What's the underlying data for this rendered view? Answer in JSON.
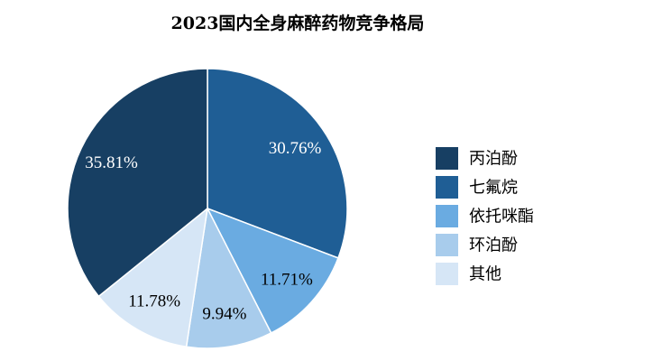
{
  "chart_data": {
    "type": "pie",
    "title": "2023国内全身麻醉药物竞争格局",
    "slices": [
      {
        "label": "丙泊酚",
        "value": 35.81,
        "display": "35.81%",
        "color": "#173f63",
        "text_color": "#ffffff"
      },
      {
        "label": "七氟烷",
        "value": 30.76,
        "display": "30.76%",
        "color": "#1f5e95",
        "text_color": "#ffffff"
      },
      {
        "label": "依托咪酯",
        "value": 11.71,
        "display": "11.71%",
        "color": "#6aabe1",
        "text_color": "#000000"
      },
      {
        "label": "环泊酚",
        "value": 9.94,
        "display": "9.94%",
        "color": "#a8ccec",
        "text_color": "#000000"
      },
      {
        "label": "其他",
        "value": 11.78,
        "display": "11.78%",
        "color": "#d6e6f6",
        "text_color": "#000000"
      }
    ],
    "drawing_order": [
      1,
      2,
      3,
      4,
      0
    ],
    "legend_position": "right",
    "start_angle": "12 o'clock, clockwise"
  }
}
